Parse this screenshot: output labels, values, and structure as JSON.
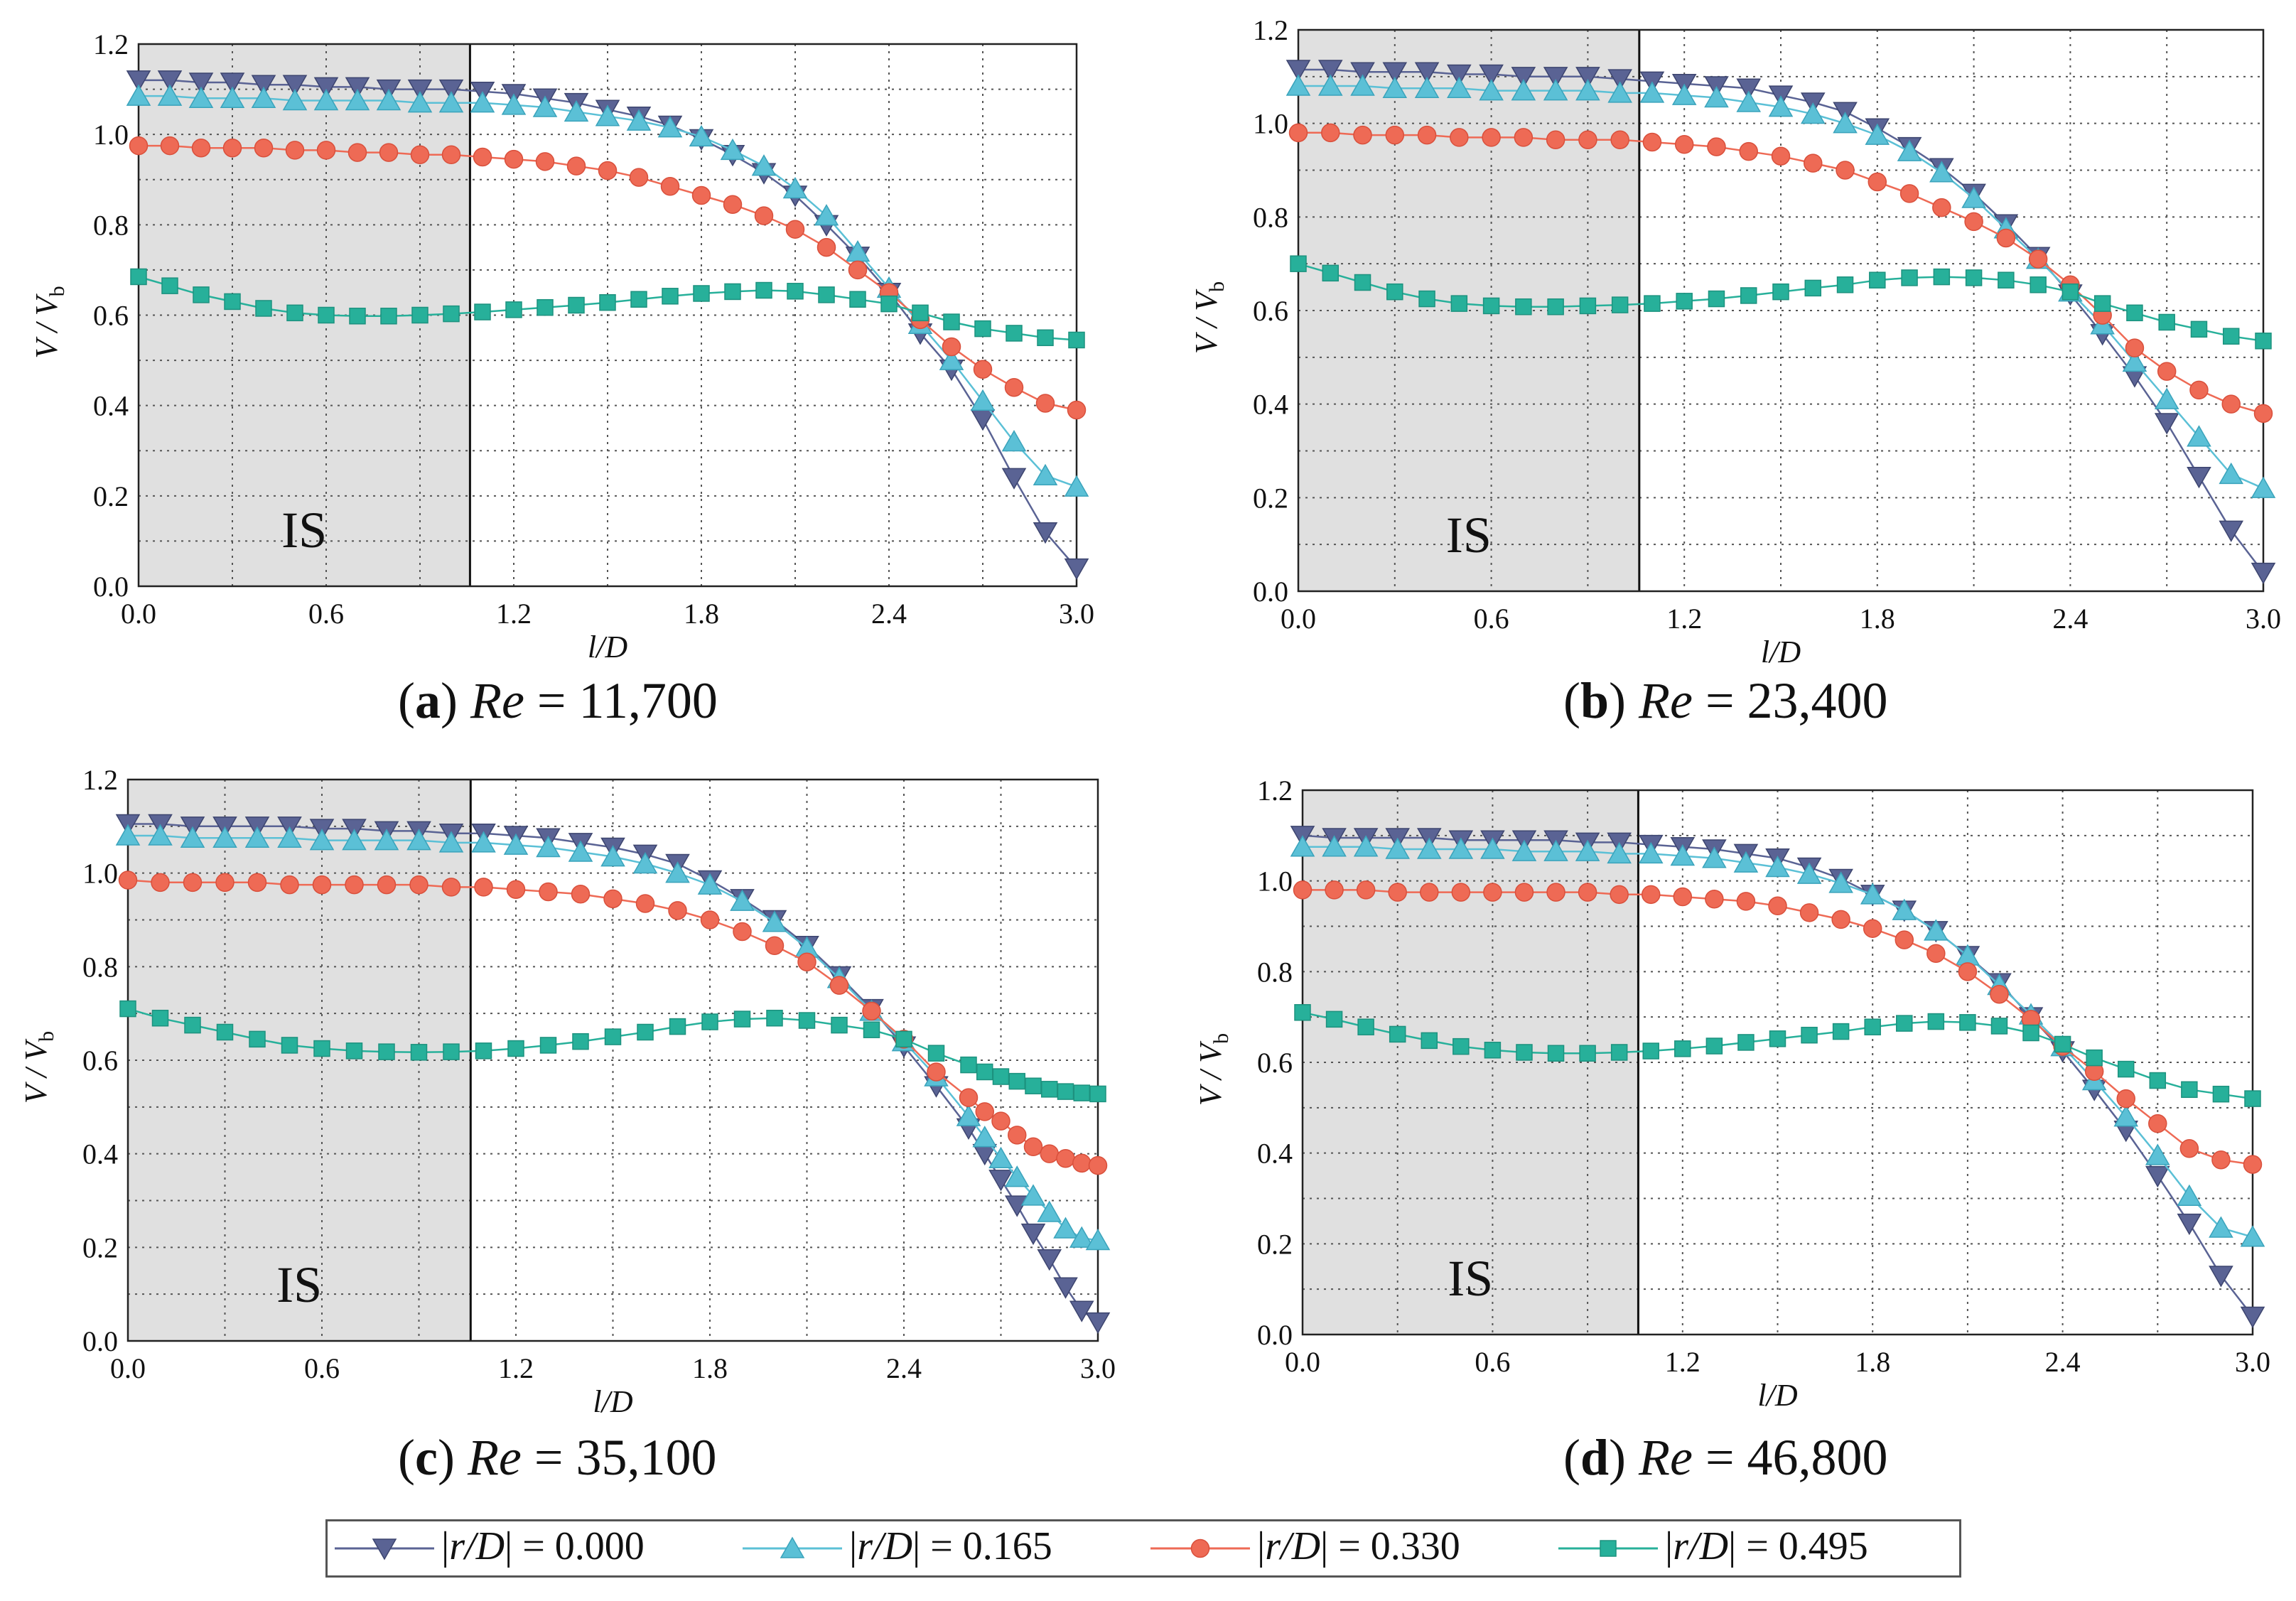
{
  "figure": {
    "legend": [
      {
        "name": "|r/D| = 0.000",
        "text_pre": "|",
        "text_var": "r/D",
        "text_post": "| = 0.000",
        "color": "#5a6394",
        "marker": "triangle-down"
      },
      {
        "name": "|r/D| = 0.165",
        "text_pre": "|",
        "text_var": "r/D",
        "text_post": "| = 0.165",
        "color": "#5bc0d6",
        "marker": "triangle-up"
      },
      {
        "name": "|r/D| = 0.330",
        "text_pre": "|",
        "text_var": "r/D",
        "text_post": "| = 0.330",
        "color": "#ee6a55",
        "marker": "circle"
      },
      {
        "name": "|r/D| = 0.495",
        "text_pre": "|",
        "text_var": "r/D",
        "text_post": "| = 0.495",
        "color": "#27b09a",
        "marker": "square"
      }
    ],
    "shaded_region_color": "#e0e0e0"
  },
  "chart_data": [
    {
      "type": "line",
      "caption": {
        "letter": "(a)",
        "re_label": "Re",
        "re_value": " = 11,700"
      },
      "xlabel": "l/D",
      "ylabel": "V / Vb",
      "xlim": [
        0,
        3.0
      ],
      "ylim": [
        0,
        1.2
      ],
      "xticks": [
        "0.0",
        "0.6",
        "1.2",
        "1.8",
        "2.4",
        "3.0"
      ],
      "yticks": [
        "0.0",
        "0.2",
        "0.4",
        "0.6",
        "0.8",
        "1.0",
        "1.2"
      ],
      "region": {
        "label": "IS",
        "x_range": [
          0,
          1.06
        ]
      },
      "x": [
        0,
        0.1,
        0.2,
        0.3,
        0.4,
        0.5,
        0.6,
        0.7,
        0.8,
        0.9,
        1.0,
        1.1,
        1.2,
        1.3,
        1.4,
        1.5,
        1.6,
        1.7,
        1.8,
        1.9,
        2.0,
        2.1,
        2.2,
        2.3,
        2.4,
        2.5,
        2.6,
        2.7,
        2.8,
        2.9,
        3.0
      ],
      "series": [
        {
          "name": "|r/D| = 0.000",
          "values": [
            1.12,
            1.12,
            1.115,
            1.115,
            1.11,
            1.11,
            1.105,
            1.105,
            1.1,
            1.1,
            1.1,
            1.095,
            1.09,
            1.08,
            1.07,
            1.055,
            1.04,
            1.02,
            0.99,
            0.955,
            0.915,
            0.865,
            0.8,
            0.73,
            0.65,
            0.56,
            0.48,
            0.37,
            0.24,
            0.12,
            0.04
          ]
        },
        {
          "name": "|r/D| = 0.165",
          "values": [
            1.085,
            1.085,
            1.08,
            1.08,
            1.08,
            1.075,
            1.075,
            1.075,
            1.075,
            1.07,
            1.07,
            1.07,
            1.065,
            1.06,
            1.05,
            1.04,
            1.03,
            1.015,
            0.995,
            0.965,
            0.93,
            0.88,
            0.82,
            0.74,
            0.66,
            0.58,
            0.5,
            0.41,
            0.32,
            0.245,
            0.22
          ]
        },
        {
          "name": "|r/D| = 0.330",
          "values": [
            0.975,
            0.975,
            0.97,
            0.97,
            0.97,
            0.965,
            0.965,
            0.96,
            0.96,
            0.955,
            0.955,
            0.95,
            0.945,
            0.94,
            0.93,
            0.92,
            0.905,
            0.885,
            0.865,
            0.845,
            0.82,
            0.79,
            0.75,
            0.7,
            0.65,
            0.59,
            0.53,
            0.48,
            0.44,
            0.405,
            0.39
          ]
        },
        {
          "name": "|r/D| = 0.495",
          "values": [
            0.685,
            0.665,
            0.645,
            0.63,
            0.615,
            0.605,
            0.6,
            0.598,
            0.598,
            0.6,
            0.603,
            0.607,
            0.612,
            0.617,
            0.622,
            0.628,
            0.635,
            0.642,
            0.648,
            0.652,
            0.655,
            0.653,
            0.645,
            0.635,
            0.625,
            0.605,
            0.585,
            0.57,
            0.56,
            0.55,
            0.545
          ]
        }
      ]
    },
    {
      "type": "line",
      "caption": {
        "letter": "(b)",
        "re_label": "Re",
        "re_value": " = 23,400"
      },
      "xlabel": "l/D",
      "ylabel": "V / Vb",
      "xlim": [
        0,
        3.0
      ],
      "ylim": [
        0,
        1.2
      ],
      "xticks": [
        "0.0",
        "0.6",
        "1.2",
        "1.8",
        "2.4",
        "3.0"
      ],
      "yticks": [
        "0.0",
        "0.2",
        "0.4",
        "0.6",
        "0.8",
        "1.0",
        "1.2"
      ],
      "region": {
        "label": "IS",
        "x_range": [
          0,
          1.06
        ]
      },
      "x": [
        0,
        0.1,
        0.2,
        0.3,
        0.4,
        0.5,
        0.6,
        0.7,
        0.8,
        0.9,
        1.0,
        1.1,
        1.2,
        1.3,
        1.4,
        1.5,
        1.6,
        1.7,
        1.8,
        1.9,
        2.0,
        2.1,
        2.2,
        2.3,
        2.4,
        2.5,
        2.6,
        2.7,
        2.8,
        2.9,
        3.0
      ],
      "series": [
        {
          "name": "|r/D| = 0.000",
          "values": [
            1.115,
            1.115,
            1.11,
            1.11,
            1.11,
            1.105,
            1.105,
            1.1,
            1.1,
            1.1,
            1.095,
            1.09,
            1.085,
            1.08,
            1.075,
            1.06,
            1.045,
            1.025,
            0.99,
            0.95,
            0.905,
            0.85,
            0.785,
            0.715,
            0.635,
            0.55,
            0.46,
            0.36,
            0.245,
            0.13,
            0.04
          ]
        },
        {
          "name": "|r/D| = 0.165",
          "values": [
            1.08,
            1.08,
            1.08,
            1.075,
            1.075,
            1.075,
            1.07,
            1.07,
            1.07,
            1.07,
            1.065,
            1.065,
            1.06,
            1.055,
            1.045,
            1.035,
            1.02,
            1.0,
            0.975,
            0.94,
            0.895,
            0.84,
            0.775,
            0.71,
            0.64,
            0.57,
            0.49,
            0.41,
            0.33,
            0.25,
            0.22
          ]
        },
        {
          "name": "|r/D| = 0.330",
          "values": [
            0.98,
            0.98,
            0.975,
            0.975,
            0.975,
            0.97,
            0.97,
            0.97,
            0.965,
            0.965,
            0.965,
            0.96,
            0.955,
            0.95,
            0.94,
            0.93,
            0.915,
            0.9,
            0.875,
            0.85,
            0.82,
            0.79,
            0.755,
            0.71,
            0.655,
            0.59,
            0.52,
            0.47,
            0.43,
            0.4,
            0.38
          ]
        },
        {
          "name": "|r/D| = 0.495",
          "values": [
            0.7,
            0.68,
            0.66,
            0.64,
            0.625,
            0.615,
            0.61,
            0.608,
            0.608,
            0.61,
            0.612,
            0.615,
            0.62,
            0.625,
            0.632,
            0.64,
            0.648,
            0.655,
            0.665,
            0.67,
            0.672,
            0.67,
            0.665,
            0.655,
            0.64,
            0.615,
            0.595,
            0.575,
            0.56,
            0.545,
            0.535
          ]
        }
      ]
    },
    {
      "type": "line",
      "caption": {
        "letter": "(c)",
        "re_label": "Re",
        "re_value": " = 35,100"
      },
      "xlabel": "l/D",
      "ylabel": "V / Vb",
      "xlim": [
        0,
        3.0
      ],
      "ylim": [
        0,
        1.2
      ],
      "xticks": [
        "0.0",
        "0.6",
        "1.2",
        "1.8",
        "2.4",
        "3.0"
      ],
      "yticks": [
        "0.0",
        "0.2",
        "0.4",
        "0.6",
        "0.8",
        "1.0",
        "1.2"
      ],
      "region": {
        "label": "IS",
        "x_range": [
          0,
          1.06
        ]
      },
      "x": [
        0,
        0.1,
        0.2,
        0.3,
        0.4,
        0.5,
        0.6,
        0.7,
        0.8,
        0.9,
        1.0,
        1.1,
        1.2,
        1.3,
        1.4,
        1.5,
        1.6,
        1.7,
        1.8,
        1.9,
        2.0,
        2.1,
        2.2,
        2.3,
        2.4,
        2.5,
        2.6,
        2.65,
        2.7,
        2.75,
        2.8,
        2.85,
        2.9,
        2.95,
        3.0
      ],
      "series": [
        {
          "name": "|r/D| = 0.000",
          "values": [
            1.105,
            1.105,
            1.1,
            1.1,
            1.1,
            1.1,
            1.095,
            1.095,
            1.09,
            1.09,
            1.085,
            1.085,
            1.08,
            1.075,
            1.065,
            1.055,
            1.04,
            1.02,
            0.985,
            0.945,
            0.9,
            0.845,
            0.78,
            0.71,
            0.63,
            0.545,
            0.455,
            0.4,
            0.345,
            0.29,
            0.23,
            0.175,
            0.115,
            0.065,
            0.04
          ]
        },
        {
          "name": "|r/D| = 0.165",
          "values": [
            1.08,
            1.08,
            1.075,
            1.075,
            1.075,
            1.075,
            1.07,
            1.07,
            1.07,
            1.07,
            1.065,
            1.065,
            1.06,
            1.055,
            1.045,
            1.035,
            1.02,
            1.0,
            0.975,
            0.94,
            0.895,
            0.84,
            0.775,
            0.705,
            0.64,
            0.565,
            0.48,
            0.435,
            0.39,
            0.35,
            0.31,
            0.275,
            0.24,
            0.22,
            0.215
          ]
        },
        {
          "name": "|r/D| = 0.330",
          "values": [
            0.985,
            0.98,
            0.98,
            0.98,
            0.98,
            0.975,
            0.975,
            0.975,
            0.975,
            0.975,
            0.97,
            0.97,
            0.965,
            0.96,
            0.955,
            0.945,
            0.935,
            0.92,
            0.9,
            0.875,
            0.845,
            0.81,
            0.76,
            0.705,
            0.645,
            0.575,
            0.52,
            0.49,
            0.47,
            0.44,
            0.415,
            0.4,
            0.39,
            0.38,
            0.375
          ]
        },
        {
          "name": "|r/D| = 0.495",
          "values": [
            0.71,
            0.69,
            0.675,
            0.66,
            0.645,
            0.632,
            0.625,
            0.62,
            0.618,
            0.617,
            0.618,
            0.62,
            0.625,
            0.632,
            0.64,
            0.65,
            0.66,
            0.672,
            0.682,
            0.688,
            0.69,
            0.685,
            0.675,
            0.665,
            0.645,
            0.615,
            0.59,
            0.575,
            0.565,
            0.555,
            0.545,
            0.538,
            0.533,
            0.53,
            0.528
          ]
        }
      ]
    },
    {
      "type": "line",
      "caption": {
        "letter": "(d)",
        "re_label": "Re",
        "re_value": " = 46,800"
      },
      "xlabel": "l/D",
      "ylabel": "V / Vb",
      "xlim": [
        0,
        3.0
      ],
      "ylim": [
        0,
        1.2
      ],
      "xticks": [
        "0.0",
        "0.6",
        "1.2",
        "1.8",
        "2.4",
        "3.0"
      ],
      "yticks": [
        "0.0",
        "0.2",
        "0.4",
        "0.6",
        "0.8",
        "1.0",
        "1.2"
      ],
      "region": {
        "label": "IS",
        "x_range": [
          0,
          1.06
        ]
      },
      "x": [
        0,
        0.1,
        0.2,
        0.3,
        0.4,
        0.5,
        0.6,
        0.7,
        0.8,
        0.9,
        1.0,
        1.1,
        1.2,
        1.3,
        1.4,
        1.5,
        1.6,
        1.7,
        1.8,
        1.9,
        2.0,
        2.1,
        2.2,
        2.3,
        2.4,
        2.5,
        2.6,
        2.7,
        2.8,
        2.9,
        3.0
      ],
      "series": [
        {
          "name": "|r/D| = 0.000",
          "values": [
            1.1,
            1.095,
            1.095,
            1.095,
            1.095,
            1.09,
            1.09,
            1.09,
            1.09,
            1.085,
            1.085,
            1.08,
            1.075,
            1.07,
            1.06,
            1.05,
            1.03,
            1.005,
            0.97,
            0.935,
            0.89,
            0.835,
            0.775,
            0.7,
            0.625,
            0.54,
            0.45,
            0.35,
            0.245,
            0.13,
            0.04
          ]
        },
        {
          "name": "|r/D| = 0.165",
          "values": [
            1.075,
            1.075,
            1.075,
            1.07,
            1.07,
            1.07,
            1.07,
            1.065,
            1.065,
            1.065,
            1.06,
            1.06,
            1.055,
            1.05,
            1.04,
            1.03,
            1.015,
            0.995,
            0.97,
            0.935,
            0.89,
            0.835,
            0.77,
            0.705,
            0.635,
            0.56,
            0.48,
            0.395,
            0.305,
            0.235,
            0.215
          ]
        },
        {
          "name": "|r/D| = 0.330",
          "values": [
            0.98,
            0.98,
            0.98,
            0.975,
            0.975,
            0.975,
            0.975,
            0.975,
            0.975,
            0.975,
            0.97,
            0.97,
            0.965,
            0.96,
            0.955,
            0.945,
            0.93,
            0.915,
            0.895,
            0.87,
            0.84,
            0.8,
            0.75,
            0.695,
            0.635,
            0.58,
            0.52,
            0.465,
            0.41,
            0.385,
            0.375
          ]
        },
        {
          "name": "|r/D| = 0.495",
          "values": [
            0.71,
            0.695,
            0.678,
            0.662,
            0.648,
            0.635,
            0.627,
            0.622,
            0.62,
            0.62,
            0.622,
            0.625,
            0.63,
            0.636,
            0.644,
            0.652,
            0.66,
            0.668,
            0.678,
            0.686,
            0.69,
            0.688,
            0.68,
            0.665,
            0.64,
            0.61,
            0.585,
            0.56,
            0.54,
            0.53,
            0.52
          ]
        }
      ]
    }
  ]
}
